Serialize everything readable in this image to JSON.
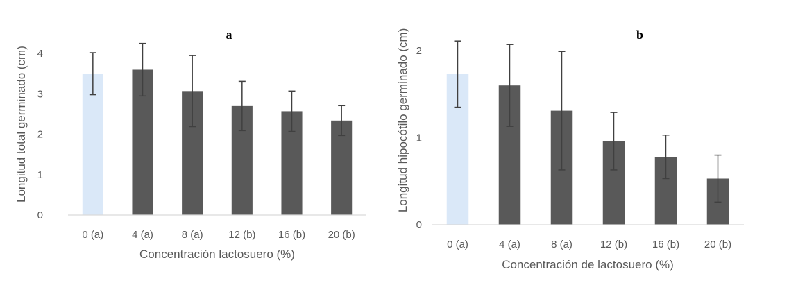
{
  "colors": {
    "control_bar": "#dae8f8",
    "treatment_bar": "#595959",
    "error_bar": "#404040",
    "axis_line": "#d9d9d9",
    "text": "#595959"
  },
  "chart_data": [
    {
      "type": "bar",
      "title": "a",
      "xlabel": "Concentración lactosuero (%)",
      "ylabel": "Longitud total germinado (cm)",
      "ylim": [
        0,
        4.5
      ],
      "yticks": [
        0,
        1,
        2,
        3,
        4
      ],
      "grid": false,
      "categories": [
        "0 (a)",
        "4 (a)",
        "8 (a)",
        "12 (b)",
        "16 (b)",
        "20 (b)"
      ],
      "values": [
        3.5,
        3.6,
        3.07,
        2.7,
        2.57,
        2.34
      ],
      "error_plus": [
        0.52,
        0.65,
        0.88,
        0.61,
        0.5,
        0.37
      ],
      "error_minus": [
        0.52,
        0.65,
        0.88,
        0.61,
        0.5,
        0.37
      ]
    },
    {
      "type": "bar",
      "title": "b",
      "xlabel": "Concentración de lactosuero (%)",
      "ylabel": "Longitud hipocótilo germinado (cm)",
      "ylim": [
        0,
        2.4
      ],
      "yticks": [
        0,
        1,
        2
      ],
      "grid": false,
      "categories": [
        "0 (a)",
        "4 (a)",
        "8 (a)",
        "12 (b)",
        "16 (b)",
        "20 (b)"
      ],
      "values": [
        1.73,
        1.6,
        1.31,
        0.96,
        0.78,
        0.53
      ],
      "error_plus": [
        0.38,
        0.47,
        0.68,
        0.33,
        0.25,
        0.27
      ],
      "error_minus": [
        0.38,
        0.47,
        0.68,
        0.33,
        0.25,
        0.27
      ]
    }
  ]
}
